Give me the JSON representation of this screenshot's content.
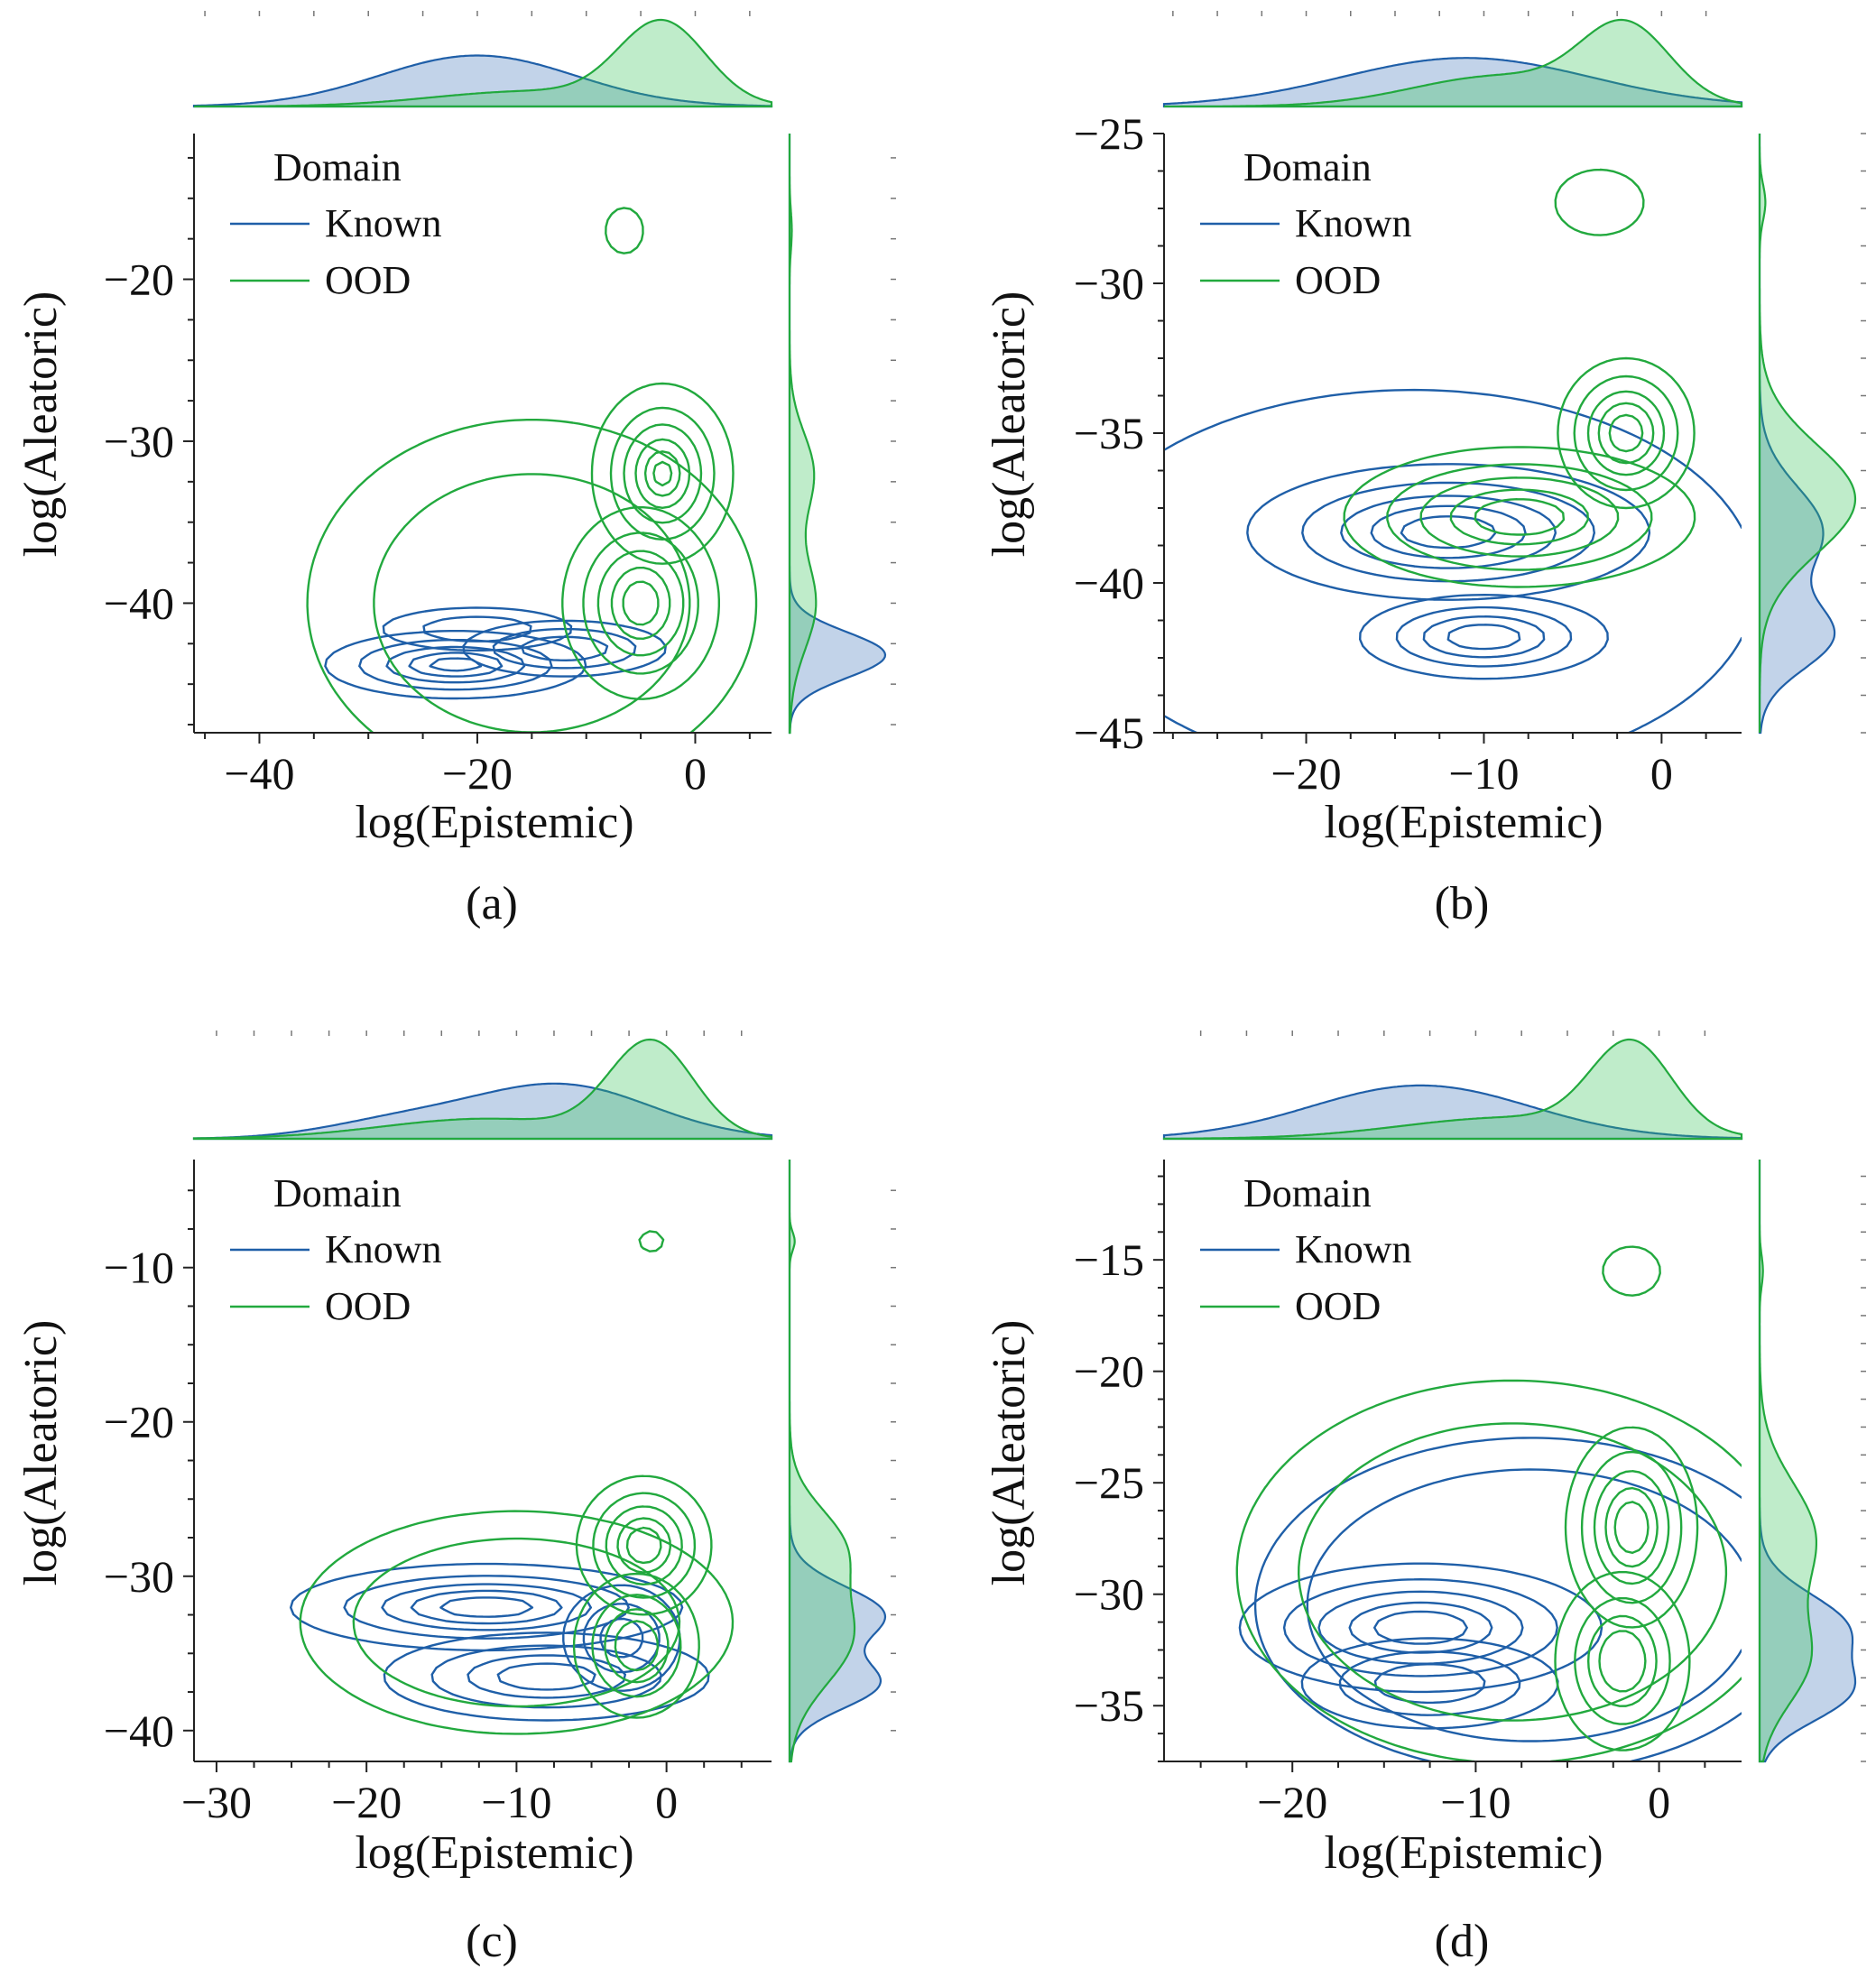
{
  "colors": {
    "known": "#1f5fa8",
    "ood": "#22a93e",
    "known_fill": "rgba(94,140,198,0.38)",
    "ood_fill": "rgba(56,196,90,0.32)",
    "axis": "#222222"
  },
  "legend": {
    "title": "Domain",
    "entries": [
      "Known",
      "OOD"
    ]
  },
  "chart_data": [
    {
      "type": "contour",
      "caption": "(a)",
      "xlabel": "log(Epistemic)",
      "ylabel": "log(Aleatoric)",
      "xlim": [
        -46,
        7
      ],
      "ylim": [
        -48,
        -11
      ],
      "xticks": [
        -40,
        -20,
        0
      ],
      "yticks": [
        -40,
        -30,
        -20
      ],
      "grid": false,
      "legend_position": "top-left",
      "series": [
        {
          "name": "Known",
          "modes": [
            {
              "x": -22,
              "y": -43.8,
              "sx": 7.5,
              "sy": 1.3,
              "levels": [
                0.28,
                0.5,
                0.7,
                0.85,
                0.95
              ]
            },
            {
              "x": -12,
              "y": -42.8,
              "sx": 6,
              "sy": 1.1,
              "levels": [
                0.3,
                0.55,
                0.8
              ]
            },
            {
              "x": -20,
              "y": -41.6,
              "sx": 6,
              "sy": 0.9,
              "levels": [
                0.35,
                0.7
              ]
            }
          ]
        },
        {
          "name": "OOD",
          "modes": [
            {
              "x": -3,
              "y": -32,
              "sx": 3.5,
              "sy": 3,
              "levels": [
                0.18,
                0.4,
                0.6,
                0.78,
                0.9,
                0.97
              ]
            },
            {
              "x": -5,
              "y": -40,
              "sx": 4,
              "sy": 3.3,
              "levels": [
                0.2,
                0.42,
                0.62,
                0.8,
                0.92
              ]
            },
            {
              "x": -15,
              "y": -40,
              "sx": 10,
              "sy": 5.5,
              "levels": [
                0.12,
                0.35
              ]
            },
            {
              "x": -6.5,
              "y": -17,
              "sx": 1.1,
              "sy": 0.9,
              "levels": [
                0.3
              ]
            }
          ]
        }
      ],
      "marginal_x": [
        {
          "name": "Known",
          "components": [
            {
              "m": -20,
              "s": 9,
              "w": 1
            }
          ]
        },
        {
          "name": "OOD",
          "components": [
            {
              "m": -3,
              "s": 4,
              "w": 0.7
            },
            {
              "m": -15,
              "s": 9,
              "w": 0.3
            }
          ]
        }
      ],
      "marginal_y": [
        {
          "name": "Known",
          "components": [
            {
              "m": -43.2,
              "s": 1.4,
              "w": 1
            }
          ]
        },
        {
          "name": "OOD",
          "components": [
            {
              "m": -32,
              "s": 2.5,
              "w": 0.45
            },
            {
              "m": -40,
              "s": 2.8,
              "w": 0.55
            },
            {
              "m": -17,
              "s": 1.2,
              "w": 0.02
            }
          ]
        }
      ]
    },
    {
      "type": "contour",
      "caption": "(b)",
      "xlabel": "log(Epistemic)",
      "ylabel": "log(Aleatoric)",
      "xlim": [
        -28,
        4.5
      ],
      "ylim": [
        -45,
        -25
      ],
      "xticks": [
        -20,
        -10,
        0
      ],
      "yticks": [
        -45,
        -40,
        -35,
        -30,
        -25
      ],
      "grid": false,
      "legend_position": "top-left",
      "series": [
        {
          "name": "Known",
          "modes": [
            {
              "x": -12,
              "y": -38.3,
              "sx": 6.5,
              "sy": 1.3,
              "levels": [
                0.22,
                0.45,
                0.65,
                0.8,
                0.92
              ]
            },
            {
              "x": -10,
              "y": -41.8,
              "sx": 4.5,
              "sy": 0.9,
              "levels": [
                0.3,
                0.55,
                0.75,
                0.9
              ]
            },
            {
              "x": -14,
              "y": -40,
              "sx": 9,
              "sy": 3,
              "levels": [
                0.1
              ]
            }
          ]
        },
        {
          "name": "OOD",
          "modes": [
            {
              "x": -2,
              "y": -35,
              "sx": 2.3,
              "sy": 1.5,
              "levels": [
                0.25,
                0.45,
                0.65,
                0.8,
                0.92
              ]
            },
            {
              "x": -8,
              "y": -37.8,
              "sx": 5.5,
              "sy": 1.3,
              "levels": [
                0.2,
                0.4,
                0.6,
                0.78,
                0.9
              ]
            },
            {
              "x": -3.5,
              "y": -27.3,
              "sx": 1.6,
              "sy": 0.7,
              "levels": [
                0.3
              ]
            }
          ]
        }
      ],
      "marginal_x": [
        {
          "name": "Known",
          "components": [
            {
              "m": -11,
              "s": 7,
              "w": 1
            }
          ]
        },
        {
          "name": "OOD",
          "components": [
            {
              "m": -2,
              "s": 2.5,
              "w": 0.55
            },
            {
              "m": -9,
              "s": 5,
              "w": 0.45
            }
          ]
        }
      ],
      "marginal_y": [
        {
          "name": "Known",
          "components": [
            {
              "m": -38.3,
              "s": 1.5,
              "w": 0.55
            },
            {
              "m": -41.8,
              "s": 1.1,
              "w": 0.45
            }
          ]
        },
        {
          "name": "OOD",
          "components": [
            {
              "m": -37.2,
              "s": 1.8,
              "w": 1
            },
            {
              "m": -27.3,
              "s": 0.6,
              "w": 0.02
            }
          ]
        }
      ]
    },
    {
      "type": "contour",
      "caption": "(c)",
      "xlabel": "log(Epistemic)",
      "ylabel": "log(Aleatoric)",
      "xlim": [
        -31.5,
        7
      ],
      "ylim": [
        -42,
        -3
      ],
      "xticks": [
        -30,
        -20,
        -10,
        0
      ],
      "yticks": [
        -40,
        -30,
        -20,
        -10
      ],
      "grid": false,
      "legend_position": "top-left",
      "series": [
        {
          "name": "Known",
          "modes": [
            {
              "x": -12,
              "y": -32,
              "sx": 7.5,
              "sy": 1.6,
              "levels": [
                0.22,
                0.45,
                0.65,
                0.8,
                0.92
              ]
            },
            {
              "x": -8,
              "y": -36.5,
              "sx": 6.5,
              "sy": 1.7,
              "levels": [
                0.25,
                0.5,
                0.72,
                0.88
              ]
            },
            {
              "x": -3,
              "y": -34,
              "sx": 2.5,
              "sy": 2.2,
              "levels": [
                0.3,
                0.6,
                0.85
              ]
            }
          ]
        },
        {
          "name": "OOD",
          "modes": [
            {
              "x": -1.5,
              "y": -28,
              "sx": 2.5,
              "sy": 2.5,
              "levels": [
                0.2,
                0.4,
                0.6,
                0.78,
                0.9
              ]
            },
            {
              "x": -2,
              "y": -34.5,
              "sx": 2.5,
              "sy": 2.8,
              "levels": [
                0.25,
                0.5,
                0.7,
                0.85
              ]
            },
            {
              "x": -10,
              "y": -33,
              "sx": 7,
              "sy": 3.5,
              "levels": [
                0.12,
                0.3
              ]
            },
            {
              "x": -1,
              "y": -8.3,
              "sx": 0.5,
              "sy": 0.4,
              "levels": [
                0.3
              ]
            }
          ]
        }
      ],
      "marginal_x": [
        {
          "name": "Known",
          "components": [
            {
              "m": -7,
              "s": 6,
              "w": 0.8
            },
            {
              "m": -18,
              "s": 5,
              "w": 0.2
            }
          ]
        },
        {
          "name": "OOD",
          "components": [
            {
              "m": -1,
              "s": 2.8,
              "w": 0.65
            },
            {
              "m": -12,
              "s": 7,
              "w": 0.35
            }
          ]
        }
      ],
      "marginal_y": [
        {
          "name": "Known",
          "components": [
            {
              "m": -32.5,
              "s": 1.8,
              "w": 0.55
            },
            {
              "m": -37,
              "s": 1.6,
              "w": 0.45
            }
          ]
        },
        {
          "name": "OOD",
          "components": [
            {
              "m": -28,
              "s": 2.5,
              "w": 0.4
            },
            {
              "m": -34,
              "s": 3,
              "w": 0.6
            },
            {
              "m": -8.3,
              "s": 0.6,
              "w": 0.01
            }
          ]
        }
      ]
    },
    {
      "type": "contour",
      "caption": "(d)",
      "xlabel": "log(Epistemic)",
      "ylabel": "log(Aleatoric)",
      "xlim": [
        -27,
        4.5
      ],
      "ylim": [
        -37.5,
        -10.5
      ],
      "xticks": [
        -20,
        -10,
        0
      ],
      "yticks": [
        -35,
        -30,
        -25,
        -20,
        -15
      ],
      "grid": false,
      "legend_position": "top-left",
      "series": [
        {
          "name": "Known",
          "modes": [
            {
              "x": -13,
              "y": -31.5,
              "sx": 5.5,
              "sy": 1.6,
              "levels": [
                0.2,
                0.4,
                0.6,
                0.78,
                0.9
              ]
            },
            {
              "x": -12.5,
              "y": -34,
              "sx": 4.5,
              "sy": 1.3,
              "levels": [
                0.3,
                0.55,
                0.8
              ]
            },
            {
              "x": -7,
              "y": -30.5,
              "sx": 7,
              "sy": 3.5,
              "levels": [
                0.1,
                0.22
              ]
            }
          ]
        },
        {
          "name": "OOD",
          "modes": [
            {
              "x": -1.5,
              "y": -27,
              "sx": 2,
              "sy": 2.5,
              "levels": [
                0.2,
                0.4,
                0.6,
                0.78,
                0.9
              ]
            },
            {
              "x": -2,
              "y": -33,
              "sx": 2.2,
              "sy": 2.4,
              "levels": [
                0.25,
                0.5,
                0.7,
                0.85
              ]
            },
            {
              "x": -8,
              "y": -29,
              "sx": 7,
              "sy": 4,
              "levels": [
                0.1,
                0.25
              ]
            },
            {
              "x": -1.5,
              "y": -15.5,
              "sx": 1,
              "sy": 0.7,
              "levels": [
                0.3
              ]
            }
          ]
        }
      ],
      "marginal_x": [
        {
          "name": "Known",
          "components": [
            {
              "m": -13,
              "s": 6,
              "w": 1
            }
          ]
        },
        {
          "name": "OOD",
          "components": [
            {
              "m": -1.5,
              "s": 2.2,
              "w": 0.6
            },
            {
              "m": -8,
              "s": 6,
              "w": 0.4
            }
          ]
        }
      ],
      "marginal_y": [
        {
          "name": "Known",
          "components": [
            {
              "m": -31.5,
              "s": 1.5,
              "w": 0.55
            },
            {
              "m": -34.5,
              "s": 1.3,
              "w": 0.45
            }
          ]
        },
        {
          "name": "OOD",
          "components": [
            {
              "m": -27.5,
              "s": 2.5,
              "w": 0.6
            },
            {
              "m": -33,
              "s": 2,
              "w": 0.4
            },
            {
              "m": -15.5,
              "s": 0.7,
              "w": 0.01
            }
          ]
        }
      ]
    }
  ]
}
